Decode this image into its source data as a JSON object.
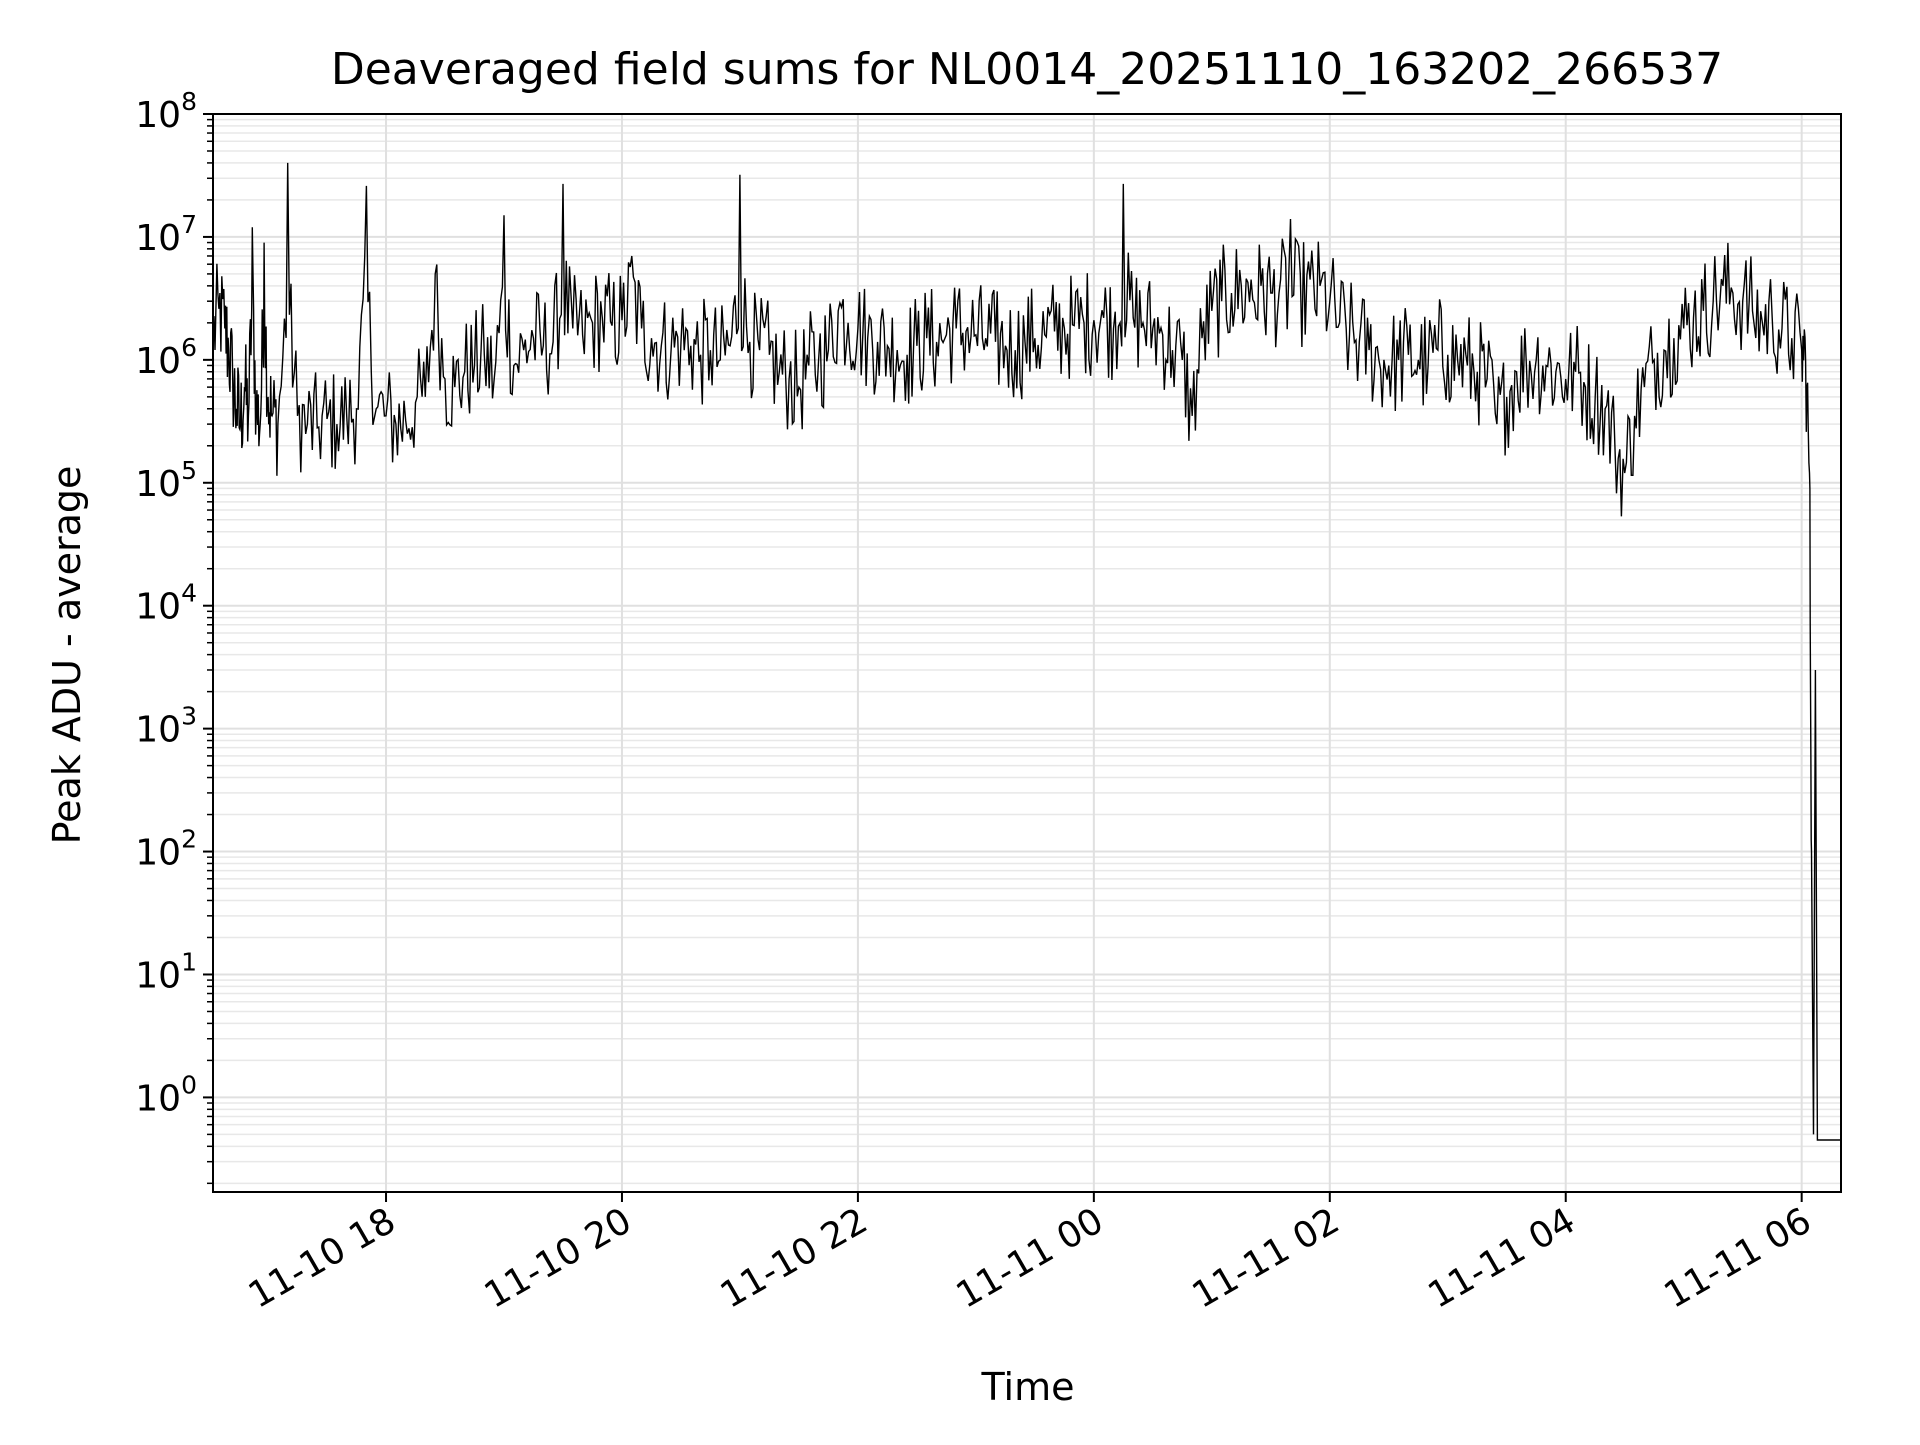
{
  "chart_data": {
    "type": "line",
    "title": "Deaveraged field sums for NL0014_20251110_163202_266537",
    "xlabel": "Time",
    "ylabel": "Peak ADU - average",
    "yscale": "log",
    "grid": true,
    "legend": "none",
    "ylim": [
      0.17,
      100000000
    ],
    "xlim": [
      "2025-11-10 16:32",
      "2025-11-11 06:20"
    ],
    "x_ticks": [
      {
        "value": "2025-11-10 18:00",
        "label": "11-10 18"
      },
      {
        "value": "2025-11-10 20:00",
        "label": "11-10 20"
      },
      {
        "value": "2025-11-10 22:00",
        "label": "11-10 22"
      },
      {
        "value": "2025-11-11 00:00",
        "label": "11-11 00"
      },
      {
        "value": "2025-11-11 02:00",
        "label": "11-11 02"
      },
      {
        "value": "2025-11-11 04:00",
        "label": "11-11 04"
      },
      {
        "value": "2025-11-11 06:00",
        "label": "11-11 06"
      }
    ],
    "y_ticks": [
      {
        "value": 1,
        "base": "10",
        "exp": "0"
      },
      {
        "value": 10,
        "base": "10",
        "exp": "1"
      },
      {
        "value": 100,
        "base": "10",
        "exp": "2"
      },
      {
        "value": 1000,
        "base": "10",
        "exp": "3"
      },
      {
        "value": 10000,
        "base": "10",
        "exp": "4"
      },
      {
        "value": 100000,
        "base": "10",
        "exp": "5"
      },
      {
        "value": 1000000,
        "base": "10",
        "exp": "6"
      },
      {
        "value": 10000000,
        "base": "10",
        "exp": "7"
      },
      {
        "value": 100000000,
        "base": "10",
        "exp": "8"
      }
    ],
    "series": [
      {
        "color": "#000000",
        "x": [
          "2025-11-10 16:32",
          "2025-11-10 16:35",
          "2025-11-10 16:38",
          "2025-11-10 16:40",
          "2025-11-10 16:42",
          "2025-11-10 16:44",
          "2025-11-10 16:46",
          "2025-11-10 16:48",
          "2025-11-10 16:50",
          "2025-11-10 16:52",
          "2025-11-10 16:54",
          "2025-11-10 16:56",
          "2025-11-10 16:58",
          "2025-11-10 17:00",
          "2025-11-10 17:02",
          "2025-11-10 17:05",
          "2025-11-10 17:10",
          "2025-11-10 17:15",
          "2025-11-10 17:20",
          "2025-11-10 17:25",
          "2025-11-10 17:30",
          "2025-11-10 17:35",
          "2025-11-10 17:40",
          "2025-11-10 17:45",
          "2025-11-10 17:50",
          "2025-11-10 17:55",
          "2025-11-10 18:00",
          "2025-11-10 18:05",
          "2025-11-10 18:10",
          "2025-11-10 18:15",
          "2025-11-10 18:20",
          "2025-11-10 18:25",
          "2025-11-10 18:30",
          "2025-11-10 18:35",
          "2025-11-10 18:40",
          "2025-11-10 18:45",
          "2025-11-10 18:50",
          "2025-11-10 18:55",
          "2025-11-10 19:00",
          "2025-11-10 19:05",
          "2025-11-10 19:10",
          "2025-11-10 19:15",
          "2025-11-10 19:20",
          "2025-11-10 19:25",
          "2025-11-10 19:30",
          "2025-11-10 19:35",
          "2025-11-10 19:40",
          "2025-11-10 19:45",
          "2025-11-10 19:50",
          "2025-11-10 19:55",
          "2025-11-10 20:00",
          "2025-11-10 20:05",
          "2025-11-10 20:10",
          "2025-11-10 20:15",
          "2025-11-10 20:20",
          "2025-11-10 20:25",
          "2025-11-10 20:30",
          "2025-11-10 20:35",
          "2025-11-10 20:40",
          "2025-11-10 20:45",
          "2025-11-10 20:50",
          "2025-11-10 20:55",
          "2025-11-10 21:00",
          "2025-11-10 21:05",
          "2025-11-10 21:10",
          "2025-11-10 21:15",
          "2025-11-10 21:20",
          "2025-11-10 21:25",
          "2025-11-10 21:30",
          "2025-11-10 21:35",
          "2025-11-10 21:40",
          "2025-11-10 21:45",
          "2025-11-10 21:50",
          "2025-11-10 21:55",
          "2025-11-10 22:00",
          "2025-11-10 22:05",
          "2025-11-10 22:10",
          "2025-11-10 22:15",
          "2025-11-10 22:20",
          "2025-11-10 22:25",
          "2025-11-10 22:30",
          "2025-11-10 22:35",
          "2025-11-10 22:40",
          "2025-11-10 22:45",
          "2025-11-10 22:50",
          "2025-11-10 22:55",
          "2025-11-10 23:00",
          "2025-11-10 23:05",
          "2025-11-10 23:10",
          "2025-11-10 23:15",
          "2025-11-10 23:20",
          "2025-11-10 23:25",
          "2025-11-10 23:30",
          "2025-11-10 23:35",
          "2025-11-10 23:40",
          "2025-11-10 23:45",
          "2025-11-10 23:50",
          "2025-11-10 23:55",
          "2025-11-11 00:00",
          "2025-11-11 00:05",
          "2025-11-11 00:10",
          "2025-11-11 00:15",
          "2025-11-11 00:20",
          "2025-11-11 00:25",
          "2025-11-11 00:30",
          "2025-11-11 00:35",
          "2025-11-11 00:40",
          "2025-11-11 00:45",
          "2025-11-11 00:50",
          "2025-11-11 00:55",
          "2025-11-11 01:00",
          "2025-11-11 01:05",
          "2025-11-11 01:10",
          "2025-11-11 01:15",
          "2025-11-11 01:20",
          "2025-11-11 01:25",
          "2025-11-11 01:30",
          "2025-11-11 01:35",
          "2025-11-11 01:40",
          "2025-11-11 01:45",
          "2025-11-11 01:50",
          "2025-11-11 01:55",
          "2025-11-11 02:00",
          "2025-11-11 02:05",
          "2025-11-11 02:10",
          "2025-11-11 02:15",
          "2025-11-11 02:20",
          "2025-11-11 02:25",
          "2025-11-11 02:30",
          "2025-11-11 02:35",
          "2025-11-11 02:40",
          "2025-11-11 02:45",
          "2025-11-11 02:50",
          "2025-11-11 02:55",
          "2025-11-11 03:00",
          "2025-11-11 03:05",
          "2025-11-11 03:10",
          "2025-11-11 03:15",
          "2025-11-11 03:20",
          "2025-11-11 03:25",
          "2025-11-11 03:30",
          "2025-11-11 03:35",
          "2025-11-11 03:40",
          "2025-11-11 03:45",
          "2025-11-11 03:50",
          "2025-11-11 03:55",
          "2025-11-11 04:00",
          "2025-11-11 04:05",
          "2025-11-11 04:10",
          "2025-11-11 04:15",
          "2025-11-11 04:20",
          "2025-11-11 04:25",
          "2025-11-11 04:30",
          "2025-11-11 04:35",
          "2025-11-11 04:40",
          "2025-11-11 04:45",
          "2025-11-11 04:50",
          "2025-11-11 04:55",
          "2025-11-11 05:00",
          "2025-11-11 05:05",
          "2025-11-11 05:10",
          "2025-11-11 05:15",
          "2025-11-11 05:20",
          "2025-11-11 05:25",
          "2025-11-11 05:30",
          "2025-11-11 05:35",
          "2025-11-11 05:40",
          "2025-11-11 05:45",
          "2025-11-11 05:50",
          "2025-11-11 05:55",
          "2025-11-11 06:00",
          "2025-11-11 06:02",
          "2025-11-11 06:04",
          "2025-11-11 06:05",
          "2025-11-11 06:06",
          "2025-11-11 06:07",
          "2025-11-11 06:08",
          "2025-11-11 06:09",
          "2025-11-11 06:10",
          "2025-11-11 06:12",
          "2025-11-11 06:15",
          "2025-11-11 06:18",
          "2025-11-11 06:20"
        ],
        "y": [
          1500000,
          2600000,
          1800000,
          1200000,
          700000,
          400000,
          300000,
          600000,
          350000,
          12000000,
          400000,
          300000,
          9000000,
          500000,
          350000,
          300000,
          40000000,
          350000,
          300000,
          280000,
          330000,
          300000,
          350000,
          400000,
          26000000,
          400000,
          350000,
          300000,
          320000,
          450000,
          500000,
          5000000,
          700000,
          600000,
          800000,
          900000,
          1100000,
          700000,
          15000000,
          900000,
          1200000,
          1500000,
          1300000,
          1400000,
          27000000,
          1800000,
          1600000,
          2000000,
          2200000,
          1900000,
          2100000,
          7000000,
          1800000,
          1500000,
          1300000,
          1200000,
          1400000,
          1300000,
          1100000,
          1200000,
          1000000,
          1300000,
          32000000,
          1400000,
          1200000,
          1100000,
          800000,
          700000,
          600000,
          900000,
          1000000,
          1200000,
          2500000,
          2000000,
          1800000,
          1500000,
          1400000,
          1300000,
          1200000,
          1100000,
          1300000,
          1500000,
          1400000,
          1600000,
          1800000,
          1700000,
          1600000,
          1500000,
          1400000,
          1300000,
          1200000,
          1400000,
          1500000,
          1600000,
          1700000,
          1800000,
          1900000,
          2000000,
          2100000,
          2200000,
          1800000,
          27000000,
          2200000,
          2000000,
          1800000,
          1600000,
          1200000,
          1000000,
          350000,
          1500000,
          2500000,
          3000000,
          3500000,
          4000000,
          4500000,
          4000000,
          3500000,
          4500000,
          14000000,
          5000000,
          4500000,
          4000000,
          3000000,
          2000000,
          1600000,
          1400000,
          1200000,
          1000000,
          900000,
          1000000,
          1100000,
          1000000,
          900000,
          1200000,
          1100000,
          1000000,
          900000,
          800000,
          700000,
          300000,
          500000,
          800000,
          900000,
          1000000,
          900000,
          800000,
          700000,
          800000,
          600000,
          500000,
          400000,
          200000,
          120000,
          350000,
          600000,
          1000000,
          1200000,
          1500000,
          1800000,
          2200000,
          2500000,
          3000000,
          4000000,
          3500000,
          3000000,
          2500000,
          2000000,
          2200000,
          1800000,
          1500000,
          1200000,
          1000000,
          120000,
          100,
          0.5,
          3000,
          0.45,
          0.45,
          0.45,
          0.45,
          0.45,
          0.45,
          0.45
        ]
      }
    ]
  }
}
